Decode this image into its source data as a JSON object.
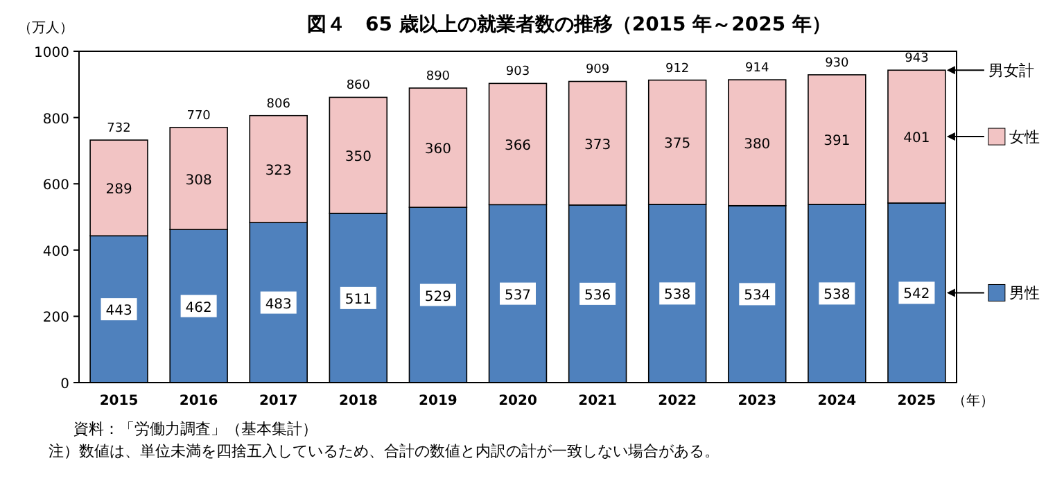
{
  "chart_data": {
    "type": "bar",
    "title": "図４　65 歳以上の就業者数の推移（2015 年～2025 年）",
    "ylabel": "（万人）",
    "xlabel": "（年）",
    "categories": [
      "2015",
      "2016",
      "2017",
      "2018",
      "2019",
      "2020",
      "2021",
      "2022",
      "2023",
      "2024",
      "2025"
    ],
    "stacked": true,
    "data_labels": true,
    "legend": "right",
    "series": [
      {
        "name": "男性",
        "color": "#4f81bd",
        "values": [
          443,
          462,
          483,
          511,
          529,
          537,
          536,
          538,
          534,
          538,
          542
        ]
      },
      {
        "name": "女性",
        "color": "#f2c4c4",
        "values": [
          289,
          308,
          323,
          350,
          360,
          366,
          373,
          375,
          380,
          391,
          401
        ]
      }
    ],
    "totals": [
      "732",
      "770",
      "806",
      "860",
      "890",
      "903",
      "909",
      "912",
      "914",
      "930",
      "943"
    ],
    "ylim": [
      0,
      1000
    ],
    "yticks": [
      0,
      200,
      400,
      600,
      800,
      1000
    ],
    "annotations": [
      "男女計",
      "資料：「労働力調査」（基本集計）",
      "注）数値は、単位未満を四捨五入しているため、合計の数値と内訳の計が一致しない場合がある。"
    ]
  }
}
